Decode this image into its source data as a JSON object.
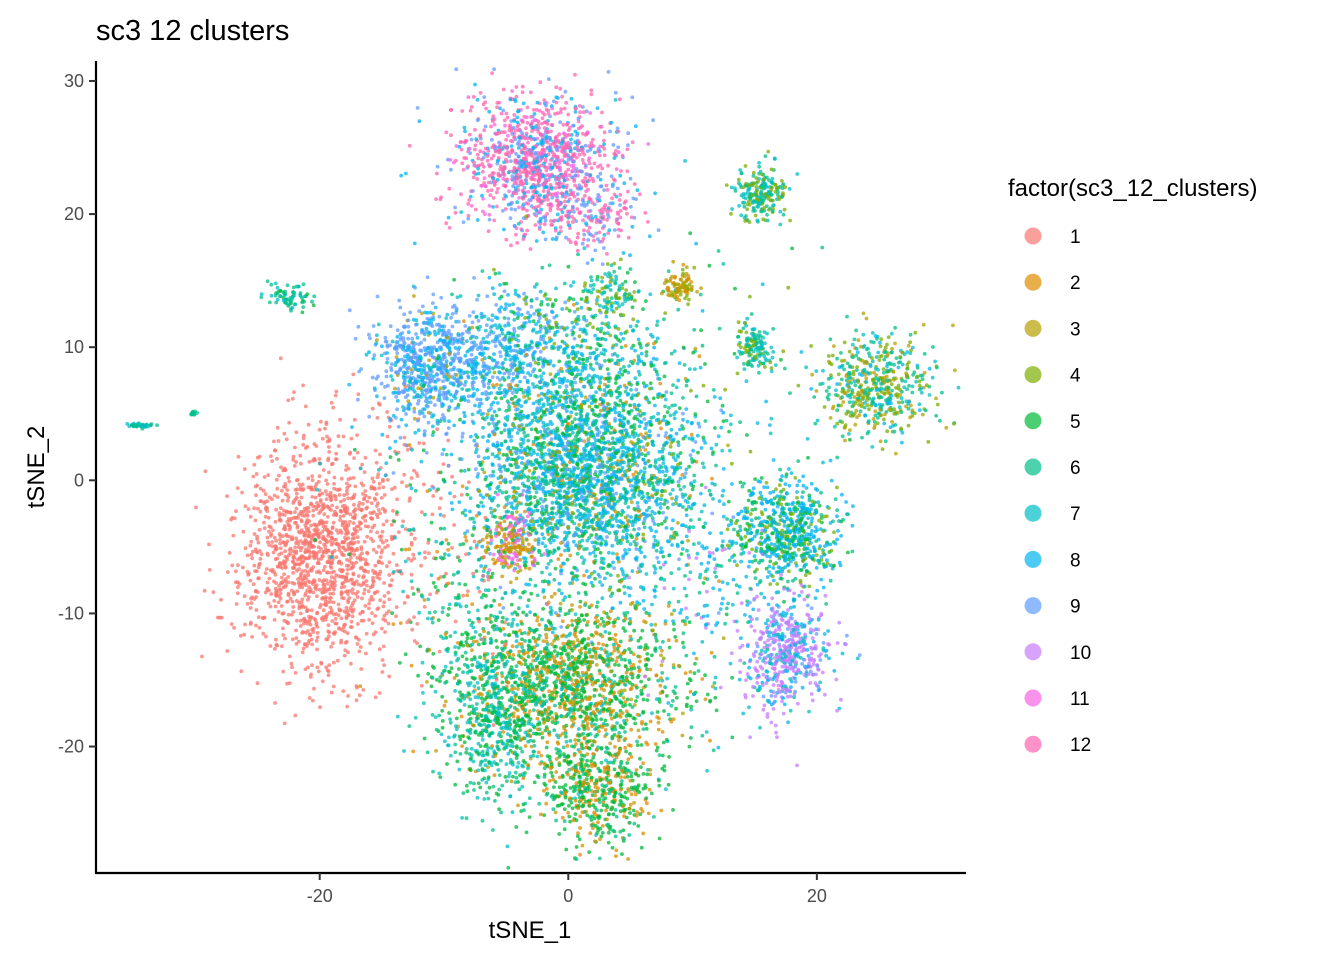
{
  "chart_data": {
    "type": "scatter",
    "title": "sc3 12 clusters",
    "xlabel": "tSNE_1",
    "ylabel": "tSNE_2",
    "xlim": [
      -38,
      32
    ],
    "ylim": [
      -29.5,
      31.5
    ],
    "x_ticks": [
      -20,
      0,
      20
    ],
    "y_ticks": [
      -20,
      -10,
      0,
      10,
      20,
      30
    ],
    "grid": false,
    "legend": {
      "title": "factor(sc3_12_clusters)",
      "position": "right",
      "entries": [
        {
          "label": "1",
          "color": "#F8766D"
        },
        {
          "label": "2",
          "color": "#DE8C00"
        },
        {
          "label": "3",
          "color": "#B79F00"
        },
        {
          "label": "4",
          "color": "#7CAE00"
        },
        {
          "label": "5",
          "color": "#00BA38"
        },
        {
          "label": "6",
          "color": "#00C08B"
        },
        {
          "label": "7",
          "color": "#00BFC4"
        },
        {
          "label": "8",
          "color": "#00B4F0"
        },
        {
          "label": "9",
          "color": "#619CFF"
        },
        {
          "label": "10",
          "color": "#C77CFF"
        },
        {
          "label": "11",
          "color": "#F564E3"
        },
        {
          "label": "12",
          "color": "#FF64B0"
        }
      ]
    },
    "groups": [
      {
        "cx": -20,
        "cy": -5.5,
        "sx": 3.2,
        "sy": 4.2,
        "n": 1400,
        "mix": {
          "1": 1.0
        }
      },
      {
        "cx": -14,
        "cy": -2,
        "sx": 3,
        "sy": 5,
        "n": 120,
        "mix": {
          "1": 0.8,
          "5": 0.1,
          "7": 0.1
        }
      },
      {
        "cx": -2.5,
        "cy": 24,
        "sx": 3.2,
        "sy": 2.4,
        "n": 1100,
        "mix": {
          "12": 0.55,
          "9": 0.2,
          "8": 0.15,
          "11": 0.1
        }
      },
      {
        "cx": 1.5,
        "cy": 20,
        "sx": 2.5,
        "sy": 1.5,
        "n": 200,
        "mix": {
          "12": 0.5,
          "9": 0.3,
          "8": 0.2
        }
      },
      {
        "cx": -11,
        "cy": 8.5,
        "sx": 2.3,
        "sy": 2.2,
        "n": 700,
        "mix": {
          "9": 0.55,
          "8": 0.3,
          "7": 0.1,
          "3": 0.05
        }
      },
      {
        "cx": -5,
        "cy": 10,
        "sx": 2.5,
        "sy": 2,
        "n": 300,
        "mix": {
          "9": 0.5,
          "8": 0.3,
          "7": 0.2
        }
      },
      {
        "cx": 1,
        "cy": 1,
        "sx": 4.8,
        "sy": 4.5,
        "n": 2700,
        "mix": {
          "8": 0.35,
          "6": 0.15,
          "5": 0.15,
          "7": 0.15,
          "9": 0.1,
          "2": 0.05,
          "3": 0.05
        }
      },
      {
        "cx": 0,
        "cy": 9,
        "sx": 4,
        "sy": 3.5,
        "n": 400,
        "mix": {
          "8": 0.3,
          "6": 0.2,
          "5": 0.2,
          "7": 0.15,
          "4": 0.15
        }
      },
      {
        "cx": -4.5,
        "cy": -5,
        "sx": 1,
        "sy": 1.2,
        "n": 180,
        "mix": {
          "11": 0.4,
          "3": 0.3,
          "2": 0.3
        }
      },
      {
        "cx": 0,
        "cy": -15.5,
        "sx": 4.5,
        "sy": 3.3,
        "n": 1600,
        "mix": {
          "5": 0.4,
          "2": 0.25,
          "3": 0.15,
          "7": 0.1,
          "6": 0.1
        }
      },
      {
        "cx": -6,
        "cy": -18,
        "sx": 2.2,
        "sy": 3.5,
        "n": 500,
        "mix": {
          "7": 0.4,
          "6": 0.3,
          "5": 0.3
        }
      },
      {
        "cx": 2.5,
        "cy": -23.5,
        "sx": 2.3,
        "sy": 2,
        "n": 450,
        "mix": {
          "5": 0.5,
          "2": 0.3,
          "6": 0.2
        }
      },
      {
        "cx": 17.5,
        "cy": -4,
        "sx": 2.2,
        "sy": 2,
        "n": 650,
        "mix": {
          "8": 0.5,
          "5": 0.2,
          "6": 0.15,
          "4": 0.15
        }
      },
      {
        "cx": 17.5,
        "cy": -13,
        "sx": 1.9,
        "sy": 2.2,
        "n": 500,
        "mix": {
          "10": 0.55,
          "8": 0.2,
          "7": 0.15,
          "9": 0.1
        }
      },
      {
        "cx": 25,
        "cy": 7,
        "sx": 2.2,
        "sy": 1.9,
        "n": 500,
        "mix": {
          "6": 0.3,
          "4": 0.25,
          "3": 0.2,
          "7": 0.15,
          "8": 0.1
        }
      },
      {
        "cx": 15.5,
        "cy": 21.5,
        "sx": 0.9,
        "sy": 1,
        "n": 220,
        "mix": {
          "6": 0.35,
          "4": 0.35,
          "7": 0.3
        }
      },
      {
        "cx": 15,
        "cy": 10,
        "sx": 0.8,
        "sy": 0.9,
        "n": 130,
        "mix": {
          "6": 0.35,
          "4": 0.3,
          "7": 0.35
        }
      },
      {
        "cx": 9,
        "cy": 14.5,
        "sx": 0.6,
        "sy": 0.6,
        "n": 90,
        "mix": {
          "3": 0.5,
          "2": 0.3,
          "4": 0.2
        }
      },
      {
        "cx": 3.5,
        "cy": 14,
        "sx": 1.2,
        "sy": 1,
        "n": 100,
        "mix": {
          "4": 0.4,
          "6": 0.3,
          "7": 0.3
        }
      },
      {
        "cx": -22.5,
        "cy": 13.8,
        "sx": 1,
        "sy": 0.5,
        "n": 70,
        "mix": {
          "6": 0.5,
          "7": 0.3,
          "5": 0.2
        }
      },
      {
        "cx": -34.5,
        "cy": 4.1,
        "sx": 0.5,
        "sy": 0.1,
        "n": 40,
        "mix": {
          "6": 0.6,
          "7": 0.4
        }
      },
      {
        "cx": -30.2,
        "cy": 5.1,
        "sx": 0.12,
        "sy": 0.12,
        "n": 12,
        "mix": {
          "6": 1.0
        }
      },
      {
        "cx": 6,
        "cy": 3,
        "sx": 6,
        "sy": 7,
        "n": 250,
        "mix": {
          "5": 0.25,
          "6": 0.25,
          "7": 0.2,
          "8": 0.15,
          "4": 0.15
        }
      },
      {
        "cx": -8,
        "cy": -9,
        "sx": 3,
        "sy": 4,
        "n": 200,
        "mix": {
          "5": 0.3,
          "7": 0.2,
          "6": 0.2,
          "2": 0.15,
          "1": 0.15
        }
      },
      {
        "cx": 11,
        "cy": -8,
        "sx": 3,
        "sy": 4,
        "n": 150,
        "mix": {
          "8": 0.3,
          "6": 0.3,
          "7": 0.2,
          "10": 0.2
        }
      }
    ]
  }
}
